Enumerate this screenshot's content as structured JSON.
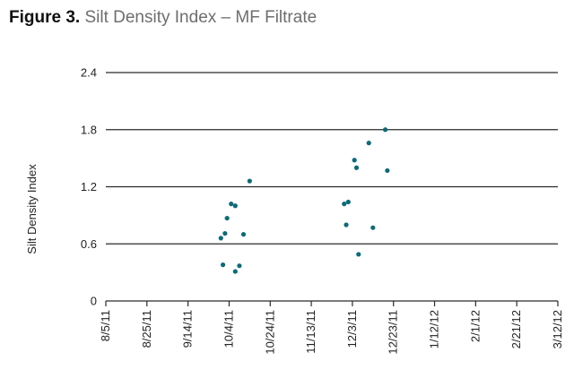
{
  "title": {
    "figure": "Figure 3.",
    "text": "Silt Density Index – MF Filtrate"
  },
  "chart_data": {
    "type": "scatter",
    "title": "Silt Density Index – MF Filtrate",
    "ylabel": "Silt Density Index",
    "xlabel": "",
    "ylim": [
      0,
      2.4
    ],
    "yticks": [
      0,
      0.6,
      1.2,
      1.8,
      2.4
    ],
    "yticklabels": [
      "0",
      "0.6",
      "1.2",
      "1.8",
      "2.4"
    ],
    "xlim": [
      "8/5/11",
      "3/12/12"
    ],
    "xticks": [
      "8/5/11",
      "8/25/11",
      "9/14/11",
      "10/4/11",
      "10/24/11",
      "11/13/11",
      "12/3/11",
      "12/23/11",
      "1/12/12",
      "2/1/12",
      "2/21/12",
      "3/12/12"
    ],
    "grid": "horizontal",
    "marker_color": "#0d6b78",
    "points": [
      {
        "x": "9/30/11",
        "y": 0.66
      },
      {
        "x": "10/1/11",
        "y": 0.38
      },
      {
        "x": "10/2/11",
        "y": 0.71
      },
      {
        "x": "10/3/11",
        "y": 0.87
      },
      {
        "x": "10/5/11",
        "y": 1.02
      },
      {
        "x": "10/7/11",
        "y": 0.31
      },
      {
        "x": "10/7/11",
        "y": 1.0
      },
      {
        "x": "10/9/11",
        "y": 0.37
      },
      {
        "x": "10/11/11",
        "y": 0.7
      },
      {
        "x": "10/14/11",
        "y": 1.26
      },
      {
        "x": "11/29/11",
        "y": 1.02
      },
      {
        "x": "11/30/11",
        "y": 0.8
      },
      {
        "x": "12/1/11",
        "y": 1.04
      },
      {
        "x": "12/4/11",
        "y": 1.48
      },
      {
        "x": "12/5/11",
        "y": 1.4
      },
      {
        "x": "12/6/11",
        "y": 0.49
      },
      {
        "x": "12/11/11",
        "y": 1.66
      },
      {
        "x": "12/13/11",
        "y": 0.77
      },
      {
        "x": "12/19/11",
        "y": 1.8
      },
      {
        "x": "12/20/11",
        "y": 1.37
      }
    ]
  }
}
